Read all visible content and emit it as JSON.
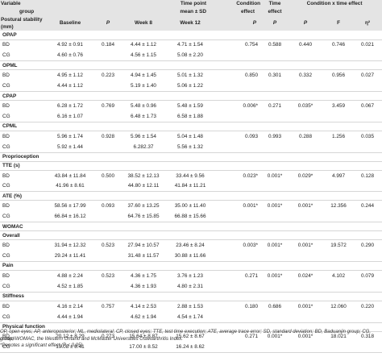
{
  "header": {
    "variable": "Variable",
    "group": "group",
    "time_point": "Time point",
    "mean_sd": "mean ± SD",
    "condition_effect_1": "Condition",
    "condition_effect_2": "effect",
    "time_effect_1": "Time",
    "time_effect_2": "effect",
    "interaction": "Condition x time effect",
    "postural": "Postural stability",
    "mm": "(mm)",
    "baseline": "Baseline",
    "p": "P",
    "week8": "Week 8",
    "week12": "Week 12",
    "p_cond": "P",
    "p_time": "P",
    "p_int": "P",
    "f": "F",
    "eta": "η²"
  },
  "sections": [
    {
      "title": "OPAP",
      "rows": [
        {
          "g": "BD",
          "base": "4.92 ± 0.91",
          "p": "0.184",
          "w8": "4.44 ± 1.12",
          "w12": "4.71 ± 1.54",
          "pc": "0.754",
          "pt": "0.588",
          "pi": "0.440",
          "f": "0.746",
          "eta": "0.021"
        },
        {
          "g": "CG",
          "base": "4.60 ± 0.76",
          "p": "",
          "w8": "4.56 ± 1.15",
          "w12": "5.08 ± 2.20",
          "pc": "",
          "pt": "",
          "pi": "",
          "f": "",
          "eta": ""
        }
      ]
    },
    {
      "title": "OPML",
      "rows": [
        {
          "g": "BD",
          "base": "4.95 ± 1.12",
          "p": "0.223",
          "w8": "4.94 ± 1.45",
          "w12": "5.01 ± 1.32",
          "pc": "0.850",
          "pt": "0.301",
          "pi": "0.332",
          "f": "0.956",
          "eta": "0.027"
        },
        {
          "g": "CG",
          "base": "4.44 ± 1.12",
          "p": "",
          "w8": "5.19 ± 1.40",
          "w12": "5.06 ± 1.22",
          "pc": "",
          "pt": "",
          "pi": "",
          "f": "",
          "eta": ""
        }
      ]
    },
    {
      "title": "CPAP",
      "rows": [
        {
          "g": "BD",
          "base": "6.28 ± 1.72",
          "p": "0.769",
          "w8": "5.48 ± 0.96",
          "w12": "5.48 ± 1.59",
          "pc": "0.006*",
          "pt": "0.271",
          "pi": "0.035*",
          "f": "3.459",
          "eta": "0.067"
        },
        {
          "g": "CG",
          "base": "6.16 ± 1.07",
          "p": "",
          "w8": "6.48 ± 1.73",
          "w12": "6.58 ± 1.88",
          "pc": "",
          "pt": "",
          "pi": "",
          "f": "",
          "eta": ""
        }
      ]
    },
    {
      "title": "CPML",
      "rows": [
        {
          "g": "BD",
          "base": "5.96 ± 1.74",
          "p": "0.928",
          "w8": "5.96 ± 1.54",
          "w12": "5.04 ± 1.48",
          "pc": "0.093",
          "pt": "0.993",
          "pi": "0.288",
          "f": "1.256",
          "eta": "0.035"
        },
        {
          "g": "CG",
          "base": "5.92 ± 1.44",
          "p": "",
          "w8": "6.282.37",
          "w12": "5.56 ± 1.32",
          "pc": "",
          "pt": "",
          "pi": "",
          "f": "",
          "eta": ""
        }
      ]
    },
    {
      "title": "Proprioception",
      "rows": []
    },
    {
      "title": "TTE (s)",
      "rows": [
        {
          "g": "BD",
          "base": "43.84 ± 11.84",
          "p": "0.500",
          "w8": "38.52 ± 12.13",
          "w12": "33.44 ± 9.56",
          "pc": "0.023*",
          "pt": "0.001*",
          "pi": "0.029*",
          "f": "4.997",
          "eta": "0.128"
        },
        {
          "g": "CG",
          "base": "41.96 ± 8.61",
          "p": "",
          "w8": "44.80 ± 12.11",
          "w12": "41.84 ± 11.21",
          "pc": "",
          "pt": "",
          "pi": "",
          "f": "",
          "eta": ""
        }
      ]
    },
    {
      "title": "ATE (%)",
      "rows": [
        {
          "g": "BD",
          "base": "58.56 ± 17.99",
          "p": "0.093",
          "w8": "37.60 ± 13.25",
          "w12": "35.00 ± 11.40",
          "pc": "0.001*",
          "pt": "0.001*",
          "pi": "0.001*",
          "f": "12.356",
          "eta": "0.244"
        },
        {
          "g": "CG",
          "base": "66.84 ± 16.12",
          "p": "",
          "w8": "64.76 ± 15.85",
          "w12": "66.88 ± 15.66",
          "pc": "",
          "pt": "",
          "pi": "",
          "f": "",
          "eta": ""
        }
      ]
    },
    {
      "title": "WOMAC",
      "rows": []
    },
    {
      "title": "Overall",
      "rows": [
        {
          "g": "BD",
          "base": "31.94 ± 12.32",
          "p": "0.523",
          "w8": "27.94 ± 10.57",
          "w12": "23.46 ± 8.24",
          "pc": "0.003*",
          "pt": "0.001*",
          "pi": "0.001*",
          "f": "19.572",
          "eta": "0.290"
        },
        {
          "g": "CG",
          "base": "29.24 ± 11.41",
          "p": "",
          "w8": "31.48 ± 11.57",
          "w12": "30.88 ± 11.66",
          "pc": "",
          "pt": "",
          "pi": "",
          "f": "",
          "eta": ""
        }
      ]
    },
    {
      "title": "Pain",
      "rows": [
        {
          "g": "BD",
          "base": "4.88 ± 2.24",
          "p": "0.523",
          "w8": "4.36 ± 1.75",
          "w12": "3.76 ± 1.23",
          "pc": "0.271",
          "pt": "0.001*",
          "pi": "0.024*",
          "f": "4.102",
          "eta": "0.079"
        },
        {
          "g": "CG",
          "base": "4.52 ± 1.85",
          "p": "",
          "w8": "4.36 ± 1.93",
          "w12": "4.80 ± 2.31",
          "pc": "",
          "pt": "",
          "pi": "",
          "f": "",
          "eta": ""
        }
      ]
    },
    {
      "title": "Stiffness",
      "rows": [
        {
          "g": "BD",
          "base": "4.16 ± 2.14",
          "p": "0.757",
          "w8": "4.14 ± 2.53",
          "w12": "2.88 ± 1.53",
          "pc": "0.180",
          "pt": "0.686",
          "pi": "0.001*",
          "f": "12.060",
          "eta": "0.220"
        },
        {
          "g": "CG",
          "base": "4.44 ± 1.94",
          "p": "",
          "w8": "4.62 ± 1.94",
          "w12": "4.54 ± 1.74",
          "pc": "",
          "pt": "",
          "pi": "",
          "f": "",
          "eta": ""
        }
      ]
    },
    {
      "title": "Physical function",
      "rows": [
        {
          "g": "BD",
          "base": "20.12 ± 8.29",
          "p": "0.273",
          "w8": "15.64 ± 8.87",
          "w12": "15.62 ± 8.67",
          "pc": "0.271",
          "pt": "0.001*",
          "pi": "0.001*",
          "f": "18.021",
          "eta": "0.318"
        },
        {
          "g": "CG",
          "base": "19.08 ± 8.41",
          "p": "",
          "w8": "17.00 ± 8.52",
          "w12": "16.24 ± 8.62",
          "pc": "",
          "pt": "",
          "pi": "",
          "f": "",
          "eta": ""
        }
      ]
    }
  ],
  "footnotes": {
    "line1": "OP, open eyes; AP, anteroposterior; ML, mediolateral; CP, closed eyes; TTE, test time execution; ATE, average trace error; SD, standard deviation; BD, Baduanjin group; CG, control",
    "line2": "group; WOMAC, the Western Ontario and McMaster Universities Osteoarthritis Index.",
    "line3": "*Denotes a significant effect (P < 0.05)."
  }
}
